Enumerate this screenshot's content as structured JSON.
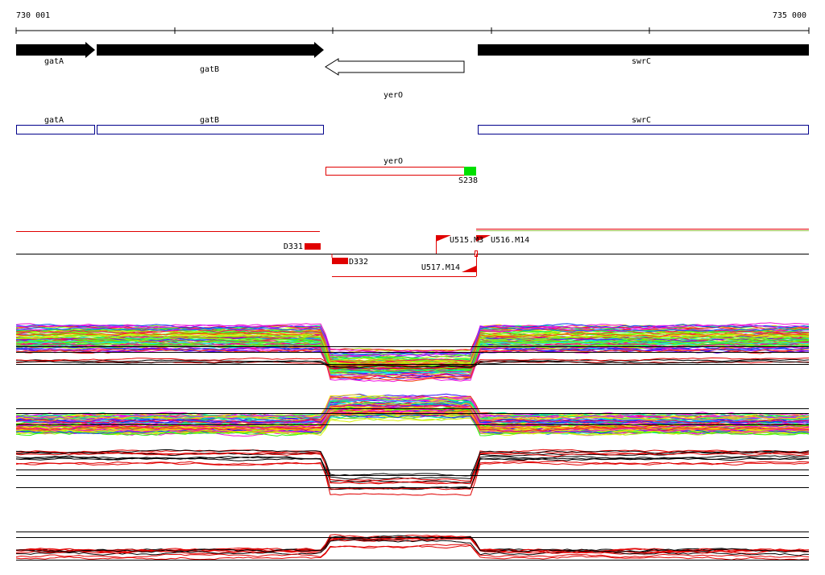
{
  "ruler": {
    "start": "730 001",
    "end": "735 000"
  },
  "genes": [
    {
      "label": "gatA"
    },
    {
      "label": "gatB"
    },
    {
      "label": "yerO"
    },
    {
      "label": "swrC"
    }
  ],
  "annotations": [
    {
      "label": "gatA"
    },
    {
      "label": "gatB"
    },
    {
      "label": "swrC"
    },
    {
      "label": "yerO"
    },
    {
      "label": "S238"
    }
  ],
  "features": [
    {
      "label": "D331"
    },
    {
      "label": "D332"
    },
    {
      "label": "U515.M3"
    },
    {
      "label": "U516.M14"
    },
    {
      "label": "U517.M14"
    }
  ]
}
